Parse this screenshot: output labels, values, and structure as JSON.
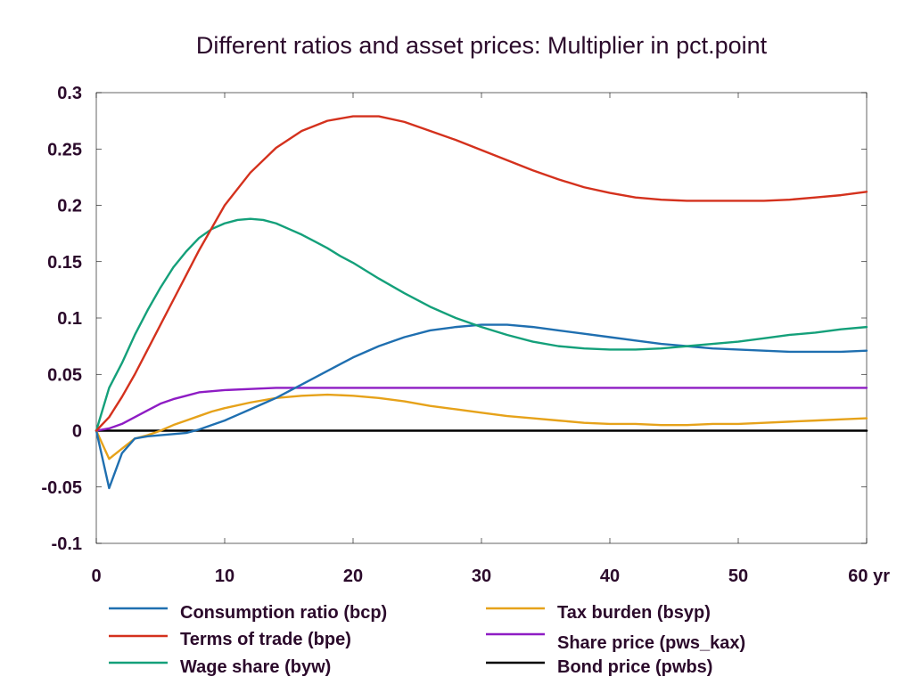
{
  "chart_data": {
    "type": "line",
    "title": "Different ratios and asset prices: Multiplier in pct.point",
    "xlabel": "",
    "ylabel": "",
    "xlim": [
      0,
      60
    ],
    "ylim": [
      -0.1,
      0.3
    ],
    "x_ticks": [
      {
        "value": 0,
        "label": "0"
      },
      {
        "value": 10,
        "label": "10"
      },
      {
        "value": 20,
        "label": "20"
      },
      {
        "value": 30,
        "label": "30"
      },
      {
        "value": 40,
        "label": "40"
      },
      {
        "value": 50,
        "label": "50"
      },
      {
        "value": 60,
        "label": "60 yr"
      }
    ],
    "y_ticks": [
      {
        "value": 0.3,
        "label": "0.3"
      },
      {
        "value": 0.25,
        "label": "0.25"
      },
      {
        "value": 0.2,
        "label": "0.2"
      },
      {
        "value": 0.15,
        "label": "0.15"
      },
      {
        "value": 0.1,
        "label": "0.1"
      },
      {
        "value": 0.05,
        "label": "0.05"
      },
      {
        "value": 0,
        "label": "0"
      },
      {
        "value": -0.05,
        "label": "-0.05"
      },
      {
        "value": -0.1,
        "label": "-0.1"
      }
    ],
    "grid": false,
    "legend_position": "bottom",
    "series": [
      {
        "name": "Consumption ratio (bcp)",
        "color": "#1f6fb0",
        "points": [
          [
            0,
            0
          ],
          [
            1,
            -0.051
          ],
          [
            2,
            -0.02
          ],
          [
            3,
            -0.007
          ],
          [
            4,
            -0.005
          ],
          [
            5,
            -0.004
          ],
          [
            6,
            -0.003
          ],
          [
            7,
            -0.002
          ],
          [
            8,
            0.001
          ],
          [
            9,
            0.005
          ],
          [
            10,
            0.009
          ],
          [
            11,
            0.014
          ],
          [
            12,
            0.019
          ],
          [
            13,
            0.024
          ],
          [
            14,
            0.029
          ],
          [
            15,
            0.035
          ],
          [
            16,
            0.041
          ],
          [
            17,
            0.047
          ],
          [
            18,
            0.053
          ],
          [
            19,
            0.059
          ],
          [
            20,
            0.065
          ],
          [
            22,
            0.075
          ],
          [
            24,
            0.083
          ],
          [
            26,
            0.089
          ],
          [
            28,
            0.092
          ],
          [
            30,
            0.094
          ],
          [
            32,
            0.094
          ],
          [
            34,
            0.092
          ],
          [
            36,
            0.089
          ],
          [
            38,
            0.086
          ],
          [
            40,
            0.083
          ],
          [
            42,
            0.08
          ],
          [
            44,
            0.077
          ],
          [
            46,
            0.075
          ],
          [
            48,
            0.073
          ],
          [
            50,
            0.072
          ],
          [
            52,
            0.071
          ],
          [
            54,
            0.07
          ],
          [
            56,
            0.07
          ],
          [
            58,
            0.07
          ],
          [
            60,
            0.071
          ]
        ]
      },
      {
        "name": "Terms of trade (bpe)",
        "color": "#d4311d",
        "points": [
          [
            0,
            0
          ],
          [
            1,
            0.012
          ],
          [
            2,
            0.03
          ],
          [
            3,
            0.05
          ],
          [
            4,
            0.072
          ],
          [
            5,
            0.094
          ],
          [
            6,
            0.116
          ],
          [
            7,
            0.138
          ],
          [
            8,
            0.16
          ],
          [
            9,
            0.18
          ],
          [
            10,
            0.2
          ],
          [
            12,
            0.229
          ],
          [
            14,
            0.251
          ],
          [
            16,
            0.266
          ],
          [
            18,
            0.275
          ],
          [
            20,
            0.279
          ],
          [
            22,
            0.279
          ],
          [
            24,
            0.274
          ],
          [
            26,
            0.266
          ],
          [
            28,
            0.258
          ],
          [
            30,
            0.249
          ],
          [
            32,
            0.24
          ],
          [
            34,
            0.231
          ],
          [
            36,
            0.223
          ],
          [
            38,
            0.216
          ],
          [
            40,
            0.211
          ],
          [
            42,
            0.207
          ],
          [
            44,
            0.205
          ],
          [
            46,
            0.204
          ],
          [
            48,
            0.204
          ],
          [
            50,
            0.204
          ],
          [
            52,
            0.204
          ],
          [
            54,
            0.205
          ],
          [
            56,
            0.207
          ],
          [
            58,
            0.209
          ],
          [
            60,
            0.212
          ]
        ]
      },
      {
        "name": "Wage share (byw)",
        "color": "#14a07a",
        "points": [
          [
            0,
            0
          ],
          [
            1,
            0.038
          ],
          [
            2,
            0.06
          ],
          [
            3,
            0.085
          ],
          [
            4,
            0.107
          ],
          [
            5,
            0.127
          ],
          [
            6,
            0.145
          ],
          [
            7,
            0.159
          ],
          [
            8,
            0.171
          ],
          [
            9,
            0.179
          ],
          [
            10,
            0.184
          ],
          [
            11,
            0.187
          ],
          [
            12,
            0.188
          ],
          [
            13,
            0.187
          ],
          [
            14,
            0.184
          ],
          [
            15,
            0.179
          ],
          [
            16,
            0.174
          ],
          [
            17,
            0.168
          ],
          [
            18,
            0.162
          ],
          [
            19,
            0.155
          ],
          [
            20,
            0.149
          ],
          [
            22,
            0.135
          ],
          [
            24,
            0.122
          ],
          [
            26,
            0.11
          ],
          [
            28,
            0.1
          ],
          [
            30,
            0.092
          ],
          [
            32,
            0.085
          ],
          [
            34,
            0.079
          ],
          [
            36,
            0.075
          ],
          [
            38,
            0.073
          ],
          [
            40,
            0.072
          ],
          [
            42,
            0.072
          ],
          [
            44,
            0.073
          ],
          [
            46,
            0.075
          ],
          [
            48,
            0.077
          ],
          [
            50,
            0.079
          ],
          [
            52,
            0.082
          ],
          [
            54,
            0.085
          ],
          [
            56,
            0.087
          ],
          [
            58,
            0.09
          ],
          [
            60,
            0.092
          ]
        ]
      },
      {
        "name": "Tax burden (bsyp)",
        "color": "#e6a21a",
        "points": [
          [
            0,
            0
          ],
          [
            1,
            -0.025
          ],
          [
            2,
            -0.016
          ],
          [
            3,
            -0.007
          ],
          [
            4,
            -0.004
          ],
          [
            5,
            0.0
          ],
          [
            6,
            0.005
          ],
          [
            7,
            0.009
          ],
          [
            8,
            0.013
          ],
          [
            9,
            0.017
          ],
          [
            10,
            0.02
          ],
          [
            12,
            0.025
          ],
          [
            14,
            0.029
          ],
          [
            16,
            0.031
          ],
          [
            18,
            0.032
          ],
          [
            20,
            0.031
          ],
          [
            22,
            0.029
          ],
          [
            24,
            0.026
          ],
          [
            26,
            0.022
          ],
          [
            28,
            0.019
          ],
          [
            30,
            0.016
          ],
          [
            32,
            0.013
          ],
          [
            34,
            0.011
          ],
          [
            36,
            0.009
          ],
          [
            38,
            0.007
          ],
          [
            40,
            0.006
          ],
          [
            42,
            0.006
          ],
          [
            44,
            0.005
          ],
          [
            46,
            0.005
          ],
          [
            48,
            0.006
          ],
          [
            50,
            0.006
          ],
          [
            52,
            0.007
          ],
          [
            54,
            0.008
          ],
          [
            56,
            0.009
          ],
          [
            58,
            0.01
          ],
          [
            60,
            0.011
          ]
        ]
      },
      {
        "name": "Share price (pws_kax)",
        "color": "#8e1cc4",
        "points": [
          [
            0,
            0
          ],
          [
            1,
            0.002
          ],
          [
            2,
            0.006
          ],
          [
            3,
            0.012
          ],
          [
            4,
            0.018
          ],
          [
            5,
            0.024
          ],
          [
            6,
            0.028
          ],
          [
            7,
            0.031
          ],
          [
            8,
            0.034
          ],
          [
            9,
            0.035
          ],
          [
            10,
            0.036
          ],
          [
            12,
            0.037
          ],
          [
            14,
            0.038
          ],
          [
            16,
            0.038
          ],
          [
            20,
            0.038
          ],
          [
            30,
            0.038
          ],
          [
            40,
            0.038
          ],
          [
            50,
            0.038
          ],
          [
            60,
            0.038
          ]
        ]
      },
      {
        "name": "Bond price (pwbs)",
        "color": "#000000",
        "points": [
          [
            0,
            0
          ],
          [
            60,
            0
          ]
        ]
      }
    ]
  }
}
